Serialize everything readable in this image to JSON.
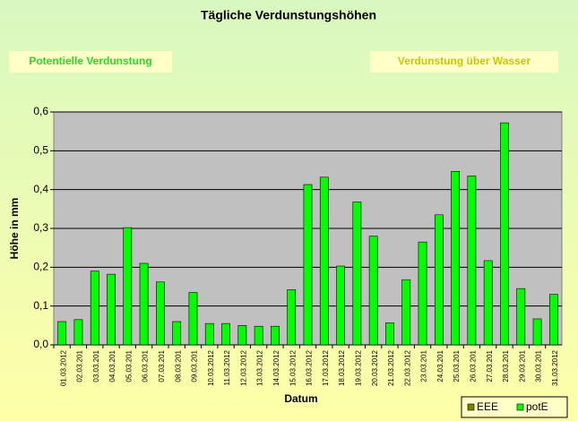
{
  "chart_data": {
    "type": "bar",
    "title": "Tägliche Verdunstungshöhen",
    "annotations": [
      "Potentielle Verdunstung",
      "Verdunstung über Wasser"
    ],
    "ylabel": "Höhe in mm",
    "xlabel": "Datum",
    "categories": [
      "01.03.2012",
      "02.03.201",
      "03.03.201",
      "04.03.201",
      "05.03.201",
      "06.03.201",
      "07.03.201",
      "08.03.201",
      "09.03.201",
      "10.03.2012",
      "11.03.2012",
      "12.03.2012",
      "13.03.2012",
      "14.03.2012",
      "15.03.2012",
      "16.03.2012",
      "17.03.2012",
      "18.03.2012",
      "19.03.2012",
      "20.03.2012",
      "21.03.2012",
      "22.03.2012",
      "23.03.201",
      "24.03.201",
      "25.03.201",
      "26.03.201",
      "27.03.201",
      "28.03.201",
      "29.03.201",
      "30.03.201",
      "31.03.2012"
    ],
    "series": [
      {
        "name": "EEE",
        "color": "#808000",
        "values": [
          null,
          null,
          null,
          null,
          null,
          null,
          null,
          null,
          null,
          null,
          null,
          null,
          null,
          null,
          null,
          null,
          null,
          null,
          null,
          null,
          null,
          null,
          null,
          null,
          null,
          null,
          null,
          null,
          null,
          null,
          null
        ]
      },
      {
        "name": "potE",
        "color": "#00ff00",
        "values": [
          0.06,
          0.065,
          0.19,
          0.182,
          0.302,
          0.21,
          0.162,
          0.06,
          0.135,
          0.055,
          0.055,
          0.05,
          0.048,
          0.048,
          0.142,
          0.413,
          0.432,
          0.203,
          0.368,
          0.28,
          0.057,
          0.168,
          0.265,
          0.335,
          0.447,
          0.435,
          0.217,
          0.572,
          0.145,
          0.067,
          0.13
        ]
      }
    ],
    "ylim": [
      0,
      0.6
    ],
    "yticks": [
      {
        "value": 0,
        "label": "0,0"
      },
      {
        "value": 0.1,
        "label": "0,1"
      },
      {
        "value": 0.2,
        "label": "0,2"
      },
      {
        "value": 0.3,
        "label": "0,3"
      },
      {
        "value": 0.4,
        "label": "0,4"
      },
      {
        "value": 0.5,
        "label": "0,5"
      },
      {
        "value": 0.6,
        "label": "0,6"
      }
    ],
    "grid": true,
    "legend": "bottom-right"
  }
}
